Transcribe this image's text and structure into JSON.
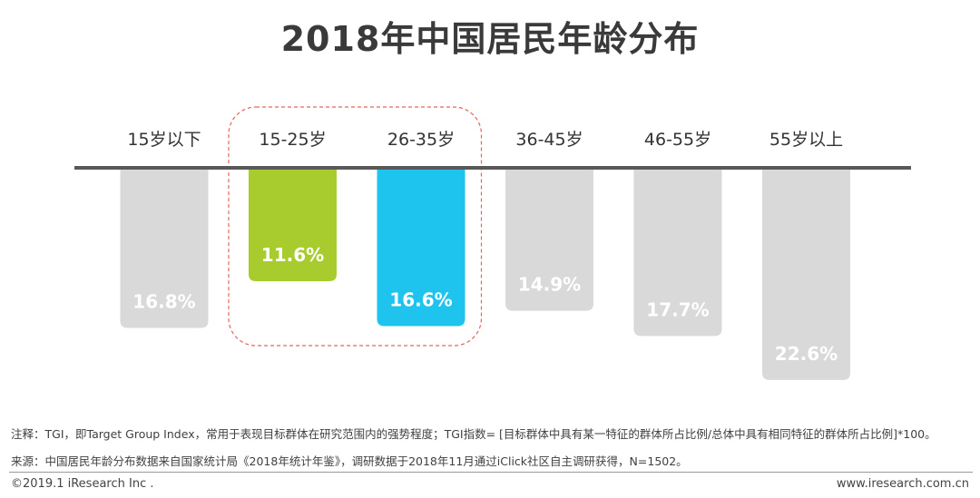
{
  "title": "2018年中国居民年龄分布",
  "chart_data": {
    "type": "bar",
    "orientation": "downward",
    "categories": [
      "15岁以下",
      "15-25岁",
      "26-35岁",
      "36-45岁",
      "46-55岁",
      "55岁以上"
    ],
    "values": [
      16.8,
      11.6,
      16.6,
      14.9,
      17.7,
      22.6
    ],
    "value_labels": [
      "16.8%",
      "11.6%",
      "16.6%",
      "14.9%",
      "17.7%",
      "22.6%"
    ],
    "unit": "%",
    "bar_colors": [
      "#d9d9d9",
      "#a8cc2e",
      "#1fc4ee",
      "#d9d9d9",
      "#d9d9d9",
      "#d9d9d9"
    ],
    "highlight_group": [
      "15-25岁",
      "26-35岁"
    ],
    "highlight_color": "#e8635f",
    "axis_color": "#595959"
  },
  "notes": {
    "note1": "注释：TGI，即Target Group Index，常用于表现目标群体在研究范围内的强势程度；TGI指数= [目标群体中具有某一特征的群体所占比例/总体中具有相同特征的群体所占比例]*100。",
    "note2": "来源：中国居民年龄分布数据来自国家统计局《2018年统计年鉴》，调研数据于2018年11月通过iClick社区自主调研获得，N=1502。"
  },
  "footer": {
    "copyright": "©2019.1 iResearch Inc .",
    "website": "www.iresearch.com.cn"
  }
}
